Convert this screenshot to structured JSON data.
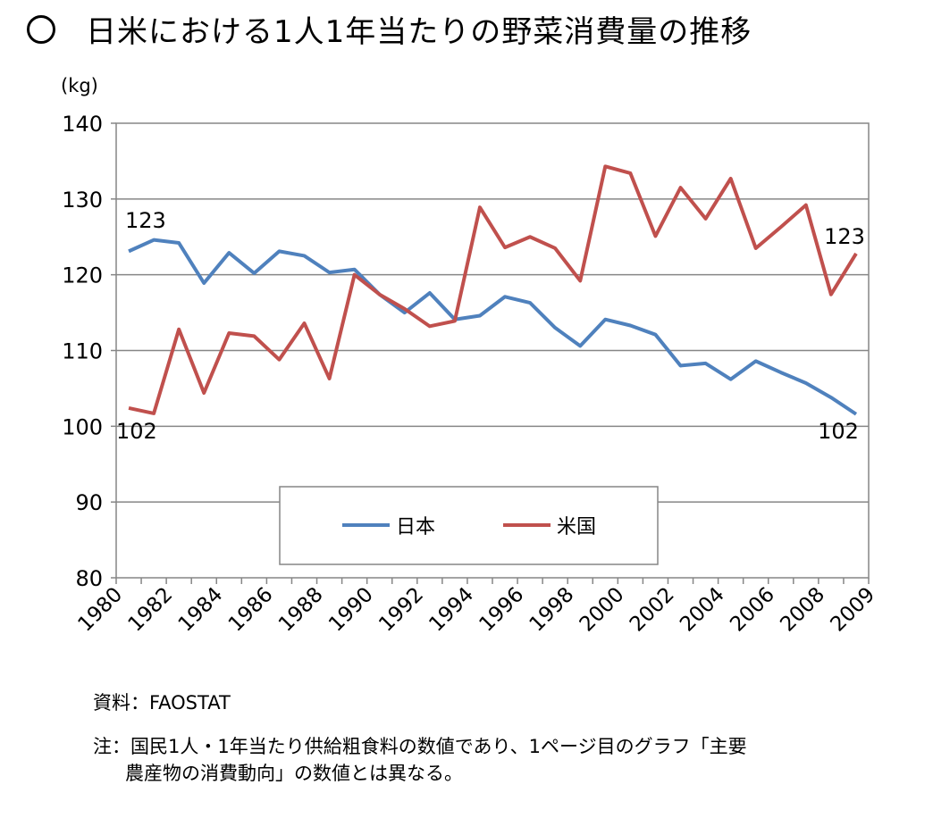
{
  "title": "日米における1人1年当たりの野菜消費量の推移",
  "source": "資料：FAOSTAT",
  "note_line1": "注：国民1人・1年当たり供給粗食料の数値であり、1ページ目のグラフ「主要",
  "note_line2": "農産物の消費動向」の数値とは異なる。",
  "chart_data": {
    "type": "line",
    "title": "日米における1人1年当たりの野菜消費量の推移",
    "ylabel": "(kg)",
    "xlabel": "",
    "ylim": [
      80,
      140
    ],
    "yticks": [
      80,
      90,
      100,
      110,
      120,
      130,
      140
    ],
    "grid": true,
    "legend_position": "bottom-center-inside",
    "x": [
      1980,
      1981,
      1982,
      1983,
      1984,
      1985,
      1986,
      1987,
      1988,
      1989,
      1990,
      1991,
      1992,
      1993,
      1994,
      1995,
      1996,
      1997,
      1998,
      1999,
      2000,
      2001,
      2002,
      2003,
      2004,
      2005,
      2006,
      2007,
      2008,
      2009
    ],
    "xtick_labels": [
      "1980",
      "1982",
      "1984",
      "1986",
      "1988",
      "1990",
      "1992",
      "1994",
      "1996",
      "1998",
      "2000",
      "2002",
      "2004",
      "2006",
      "2008",
      "2009"
    ],
    "series": [
      {
        "name": "日本",
        "color": "#4F81BD",
        "values": [
          123.1,
          124.6,
          124.2,
          118.9,
          122.9,
          120.2,
          123.1,
          122.5,
          120.3,
          120.7,
          117.4,
          115.0,
          117.6,
          114.1,
          114.6,
          117.1,
          116.3,
          113.0,
          110.6,
          114.1,
          113.3,
          112.1,
          108.0,
          108.3,
          106.2,
          108.6,
          107.1,
          105.7,
          103.8,
          101.6
        ],
        "labels": [
          {
            "x": 1980,
            "text": "123"
          },
          {
            "x": 2009,
            "text": "102"
          }
        ]
      },
      {
        "name": "米国",
        "color": "#C0504D",
        "values": [
          102.4,
          101.7,
          112.8,
          104.4,
          112.3,
          111.9,
          108.8,
          113.6,
          106.3,
          120.0,
          117.4,
          115.5,
          113.2,
          113.9,
          128.9,
          123.6,
          125.0,
          123.5,
          119.2,
          134.3,
          133.4,
          125.1,
          131.5,
          127.4,
          132.7,
          123.5,
          126.3,
          129.2,
          117.4,
          122.8
        ],
        "labels": [
          {
            "x": 1980,
            "text": "102"
          },
          {
            "x": 2009,
            "text": "123"
          }
        ]
      }
    ]
  }
}
